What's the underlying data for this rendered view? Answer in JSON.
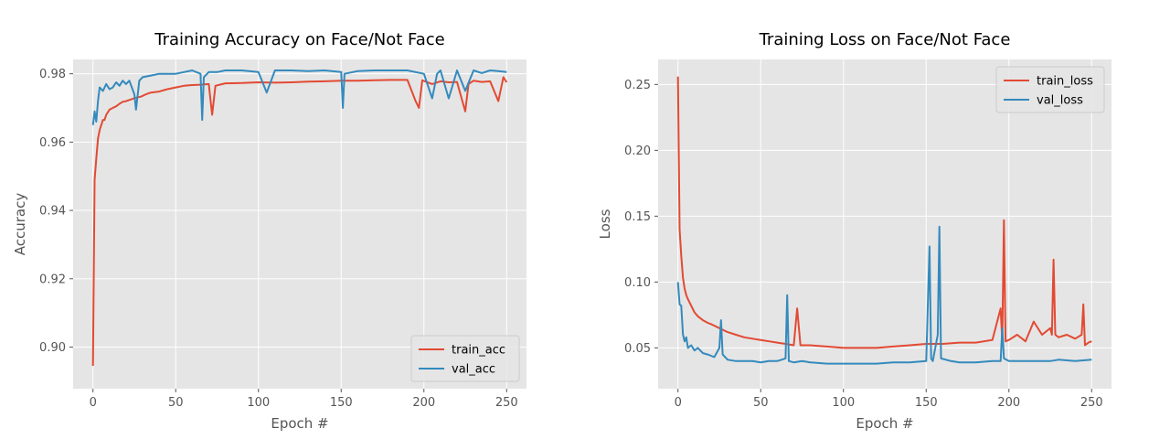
{
  "colors": {
    "train": "#E24A33",
    "val": "#348ABD",
    "plot_bg": "#E5E5E5",
    "grid": "#FFFFFF",
    "legend_border": "#CCCCCC"
  },
  "chart_data": [
    {
      "type": "line",
      "title": "Training Accuracy on Face/Not Face",
      "xlabel": "Epoch #",
      "ylabel": "Accuracy",
      "xlim": [
        -12,
        262
      ],
      "ylim": [
        0.8878,
        0.9842
      ],
      "xticks": [
        0,
        50,
        100,
        150,
        200,
        250
      ],
      "xtick_labels": [
        "0",
        "50",
        "100",
        "150",
        "200",
        "250"
      ],
      "yticks": [
        0.9,
        0.92,
        0.94,
        0.96,
        0.98
      ],
      "ytick_labels": [
        "0.90",
        "0.92",
        "0.94",
        "0.96",
        "0.98"
      ],
      "grid": true,
      "legend_position": "lower-right",
      "series": [
        {
          "name": "train_acc",
          "x": [
            0,
            1,
            2,
            3,
            4,
            5,
            6,
            7,
            8,
            10,
            12,
            14,
            16,
            18,
            20,
            23,
            26,
            29,
            32,
            35,
            40,
            45,
            50,
            55,
            60,
            65,
            70,
            72,
            74,
            80,
            90,
            100,
            110,
            120,
            130,
            140,
            150,
            160,
            170,
            180,
            190,
            195,
            197,
            199,
            205,
            210,
            215,
            220,
            225,
            227,
            230,
            235,
            240,
            245,
            248,
            250
          ],
          "y": [
            0.8945,
            0.949,
            0.955,
            0.961,
            0.9635,
            0.965,
            0.9665,
            0.9665,
            0.968,
            0.9695,
            0.97,
            0.9705,
            0.9712,
            0.9718,
            0.972,
            0.9725,
            0.973,
            0.9733,
            0.974,
            0.9745,
            0.9748,
            0.9755,
            0.976,
            0.9765,
            0.9767,
            0.9768,
            0.977,
            0.968,
            0.9765,
            0.9772,
            0.9773,
            0.9775,
            0.9774,
            0.9775,
            0.9777,
            0.9778,
            0.978,
            0.978,
            0.9781,
            0.9782,
            0.9782,
            0.972,
            0.97,
            0.9781,
            0.977,
            0.9778,
            0.9775,
            0.9776,
            0.969,
            0.977,
            0.978,
            0.9776,
            0.9778,
            0.972,
            0.979,
            0.9775
          ]
        },
        {
          "name": "val_acc",
          "x": [
            0,
            1,
            2,
            3,
            4,
            6,
            8,
            10,
            12,
            14,
            16,
            18,
            20,
            22,
            25,
            26,
            28,
            30,
            35,
            40,
            45,
            50,
            55,
            60,
            65,
            66,
            67,
            70,
            75,
            80,
            90,
            100,
            105,
            110,
            120,
            130,
            140,
            150,
            151,
            152,
            160,
            170,
            180,
            190,
            200,
            205,
            208,
            210,
            215,
            220,
            225,
            230,
            235,
            240,
            245,
            250
          ],
          "y": [
            0.965,
            0.969,
            0.966,
            0.972,
            0.976,
            0.975,
            0.977,
            0.9755,
            0.976,
            0.9775,
            0.9765,
            0.978,
            0.977,
            0.978,
            0.974,
            0.9695,
            0.978,
            0.979,
            0.9795,
            0.98,
            0.98,
            0.98,
            0.9805,
            0.981,
            0.98,
            0.9665,
            0.979,
            0.9805,
            0.9805,
            0.981,
            0.981,
            0.9805,
            0.9745,
            0.981,
            0.981,
            0.9808,
            0.981,
            0.9805,
            0.97,
            0.98,
            0.9808,
            0.981,
            0.981,
            0.981,
            0.98,
            0.9728,
            0.98,
            0.981,
            0.9728,
            0.981,
            0.975,
            0.981,
            0.9802,
            0.981,
            0.9808,
            0.9805
          ]
        }
      ]
    },
    {
      "type": "line",
      "title": "Training Loss on Face/Not Face",
      "xlabel": "Epoch #",
      "ylabel": "Loss",
      "xlim": [
        -12,
        262
      ],
      "ylim": [
        0.019,
        0.269
      ],
      "xticks": [
        0,
        50,
        100,
        150,
        200,
        250
      ],
      "xtick_labels": [
        "0",
        "50",
        "100",
        "150",
        "200",
        "250"
      ],
      "yticks": [
        0.05,
        0.1,
        0.15,
        0.2,
        0.25
      ],
      "ytick_labels": [
        "0.05",
        "0.10",
        "0.15",
        "0.20",
        "0.25"
      ],
      "grid": true,
      "legend_position": "upper-right",
      "series": [
        {
          "name": "train_loss",
          "x": [
            0,
            1,
            2,
            3,
            4,
            5,
            6,
            8,
            10,
            12,
            15,
            18,
            20,
            25,
            30,
            35,
            40,
            45,
            50,
            55,
            60,
            65,
            70,
            72,
            74,
            80,
            90,
            100,
            110,
            120,
            130,
            140,
            150,
            160,
            170,
            180,
            190,
            195,
            196,
            197,
            198,
            200,
            205,
            210,
            215,
            220,
            225,
            226,
            227,
            228,
            230,
            235,
            240,
            244,
            245,
            246,
            248,
            250
          ],
          "y": [
            0.256,
            0.14,
            0.12,
            0.103,
            0.095,
            0.09,
            0.087,
            0.082,
            0.077,
            0.074,
            0.071,
            0.069,
            0.068,
            0.065,
            0.062,
            0.06,
            0.058,
            0.057,
            0.056,
            0.055,
            0.054,
            0.053,
            0.052,
            0.08,
            0.052,
            0.052,
            0.051,
            0.05,
            0.05,
            0.05,
            0.051,
            0.052,
            0.053,
            0.053,
            0.054,
            0.054,
            0.056,
            0.08,
            0.055,
            0.147,
            0.055,
            0.056,
            0.06,
            0.055,
            0.07,
            0.06,
            0.065,
            0.06,
            0.117,
            0.06,
            0.058,
            0.06,
            0.057,
            0.06,
            0.083,
            0.052,
            0.054,
            0.055
          ]
        },
        {
          "name": "val_loss",
          "x": [
            0,
            1,
            2,
            3,
            4,
            5,
            6,
            8,
            10,
            12,
            15,
            18,
            20,
            22,
            25,
            26,
            27,
            30,
            35,
            40,
            45,
            50,
            55,
            60,
            65,
            66,
            67,
            70,
            75,
            80,
            90,
            100,
            110,
            120,
            130,
            140,
            150,
            152,
            153,
            154,
            157,
            158,
            159,
            165,
            170,
            180,
            190,
            195,
            196,
            197,
            200,
            210,
            220,
            225,
            230,
            240,
            250
          ],
          "y": [
            0.1,
            0.083,
            0.082,
            0.06,
            0.055,
            0.058,
            0.05,
            0.052,
            0.048,
            0.05,
            0.046,
            0.045,
            0.044,
            0.043,
            0.05,
            0.071,
            0.045,
            0.041,
            0.04,
            0.04,
            0.04,
            0.039,
            0.04,
            0.04,
            0.042,
            0.09,
            0.04,
            0.039,
            0.04,
            0.039,
            0.038,
            0.038,
            0.038,
            0.038,
            0.039,
            0.039,
            0.04,
            0.127,
            0.042,
            0.04,
            0.06,
            0.142,
            0.042,
            0.04,
            0.039,
            0.039,
            0.04,
            0.04,
            0.065,
            0.042,
            0.04,
            0.04,
            0.04,
            0.04,
            0.041,
            0.04,
            0.041
          ]
        }
      ]
    }
  ]
}
